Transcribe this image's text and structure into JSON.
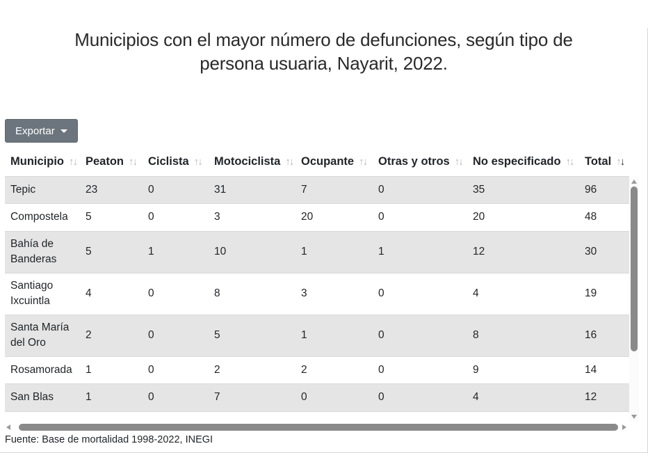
{
  "page": {
    "title": "Municipios con el mayor número de defunciones, según tipo de persona usuaria, Nayarit, 2022.",
    "footer": "Fuente: Base de mortalidad 1998-2022, INEGI"
  },
  "toolbar": {
    "export_label": "Exportar"
  },
  "icons": {
    "sort_asc": "↑",
    "sort_desc": "↓"
  },
  "table": {
    "columns": [
      {
        "label": "Municipio",
        "sort": "none"
      },
      {
        "label": "Peaton",
        "sort": "none"
      },
      {
        "label": "Ciclista",
        "sort": "none"
      },
      {
        "label": "Motociclista",
        "sort": "none"
      },
      {
        "label": "Ocupante",
        "sort": "none"
      },
      {
        "label": "Otras y otros",
        "sort": "none"
      },
      {
        "label": "No especificado",
        "sort": "none"
      },
      {
        "label": "Total",
        "sort": "desc"
      }
    ],
    "rows": [
      {
        "municipio": "Tepic",
        "values": [
          "23",
          "0",
          "31",
          "7",
          "0",
          "35",
          "96"
        ]
      },
      {
        "municipio": "Compostela",
        "values": [
          "5",
          "0",
          "3",
          "20",
          "0",
          "20",
          "48"
        ]
      },
      {
        "municipio": "Bahía de Banderas",
        "values": [
          "5",
          "1",
          "10",
          "1",
          "1",
          "12",
          "30"
        ]
      },
      {
        "municipio": "Santiago Ixcuintla",
        "values": [
          "4",
          "0",
          "8",
          "3",
          "0",
          "4",
          "19"
        ]
      },
      {
        "municipio": "Santa María del Oro",
        "values": [
          "2",
          "0",
          "5",
          "1",
          "0",
          "8",
          "16"
        ]
      },
      {
        "municipio": "Rosamorada",
        "values": [
          "1",
          "0",
          "2",
          "2",
          "0",
          "9",
          "14"
        ]
      },
      {
        "municipio": "San Blas",
        "values": [
          "1",
          "0",
          "7",
          "0",
          "0",
          "4",
          "12"
        ]
      }
    ]
  },
  "colors": {
    "export_button_bg": "#6c757d",
    "row_stripe": "#e5e5e5",
    "header_text": "#212529",
    "sort_inactive": "#b4b7ba",
    "sort_active": "#1b1e21",
    "scrollbar_thumb": "#8a8a8a"
  }
}
